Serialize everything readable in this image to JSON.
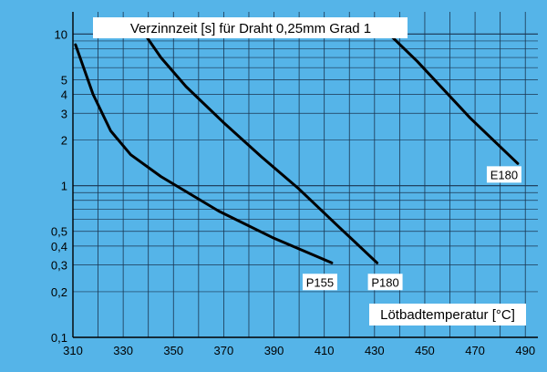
{
  "chart_data": {
    "type": "line",
    "title": "Verzinnzeit [s] für Draht 0,25mm Grad 1",
    "xlabel": "Lötbadtemperatur [°C]",
    "ylabel": "",
    "xlim": [
      310,
      495
    ],
    "ylim": [
      0.1,
      14
    ],
    "y_scale": "log",
    "grid": true,
    "x_ticks": [
      310,
      330,
      350,
      370,
      390,
      410,
      430,
      450,
      470,
      490
    ],
    "y_ticks": [
      {
        "value": 0.1,
        "label": "0,1"
      },
      {
        "value": 0.2,
        "label": "0,2"
      },
      {
        "value": 0.3,
        "label": "0,3"
      },
      {
        "value": 0.4,
        "label": "0,4"
      },
      {
        "value": 0.5,
        "label": "0,5"
      },
      {
        "value": 1,
        "label": "1"
      },
      {
        "value": 2,
        "label": "2"
      },
      {
        "value": 3,
        "label": "3"
      },
      {
        "value": 4,
        "label": "4"
      },
      {
        "value": 5,
        "label": "5"
      },
      {
        "value": 10,
        "label": "10"
      }
    ],
    "series": [
      {
        "name": "P155",
        "x": [
          311,
          318,
          325,
          333,
          345,
          368,
          390,
          413
        ],
        "y": [
          8.5,
          4.0,
          2.3,
          1.6,
          1.15,
          0.68,
          0.45,
          0.31
        ]
      },
      {
        "name": "P180",
        "x": [
          336,
          345,
          355,
          370,
          385,
          400,
          415,
          431
        ],
        "y": [
          11.5,
          7.0,
          4.5,
          2.6,
          1.55,
          0.95,
          0.55,
          0.31
        ]
      },
      {
        "name": "E180",
        "x": [
          432,
          447,
          468,
          487
        ],
        "y": [
          11.5,
          6.6,
          2.8,
          1.4
        ]
      }
    ],
    "colors": {
      "background": "#55b4e8",
      "line": "#000000",
      "label_box": "#ffffff",
      "grid": "#000000"
    }
  }
}
